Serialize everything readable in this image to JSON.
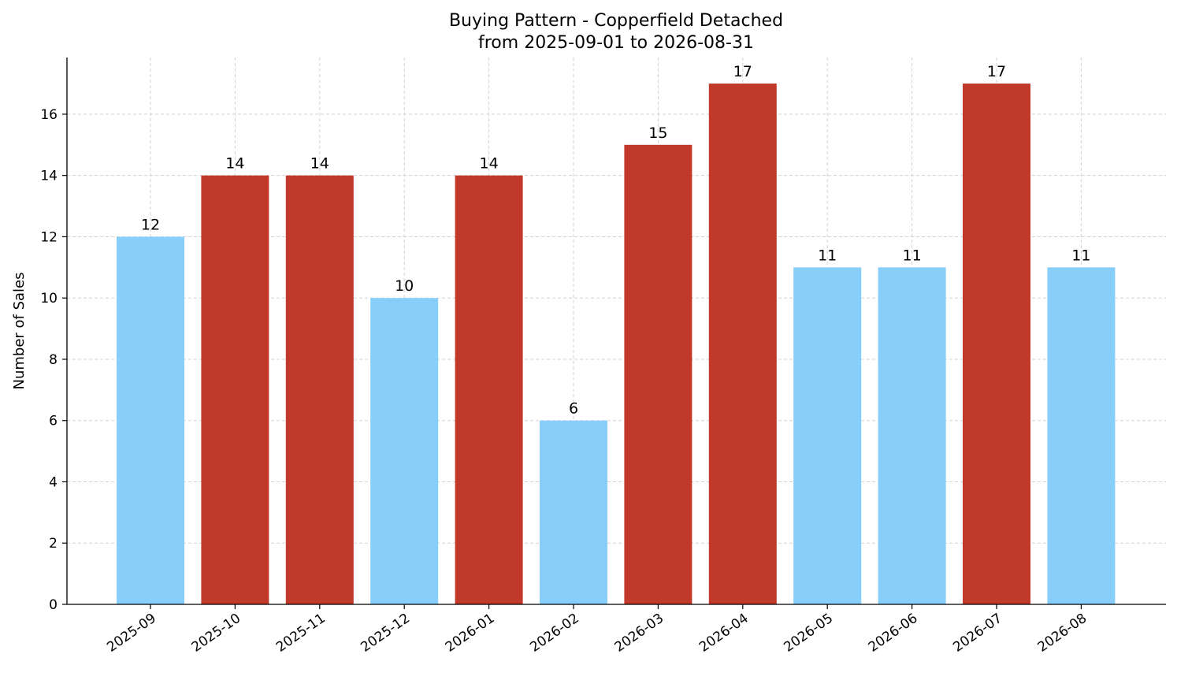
{
  "chart_data": {
    "type": "bar",
    "title": "Buying Pattern - Copperfield Detached",
    "subtitle": "from 2025-09-01 to 2026-08-31",
    "xlabel": "",
    "ylabel": "Number of Sales",
    "categories": [
      "2025-09",
      "2025-10",
      "2025-11",
      "2025-12",
      "2026-01",
      "2026-02",
      "2026-03",
      "2026-04",
      "2026-05",
      "2026-06",
      "2026-07",
      "2026-08"
    ],
    "values": [
      12,
      14,
      14,
      10,
      14,
      6,
      15,
      17,
      11,
      11,
      17,
      11
    ],
    "bar_colors": [
      "#87CEFA",
      "#C0392B",
      "#C0392B",
      "#87CEFA",
      "#C0392B",
      "#87CEFA",
      "#C0392B",
      "#C0392B",
      "#87CEFA",
      "#87CEFA",
      "#C0392B",
      "#87CEFA"
    ],
    "ylim": [
      0,
      17.85
    ],
    "yticks": [
      0,
      2,
      4,
      6,
      8,
      10,
      12,
      14,
      16
    ],
    "grid": true,
    "data_labels": true
  }
}
